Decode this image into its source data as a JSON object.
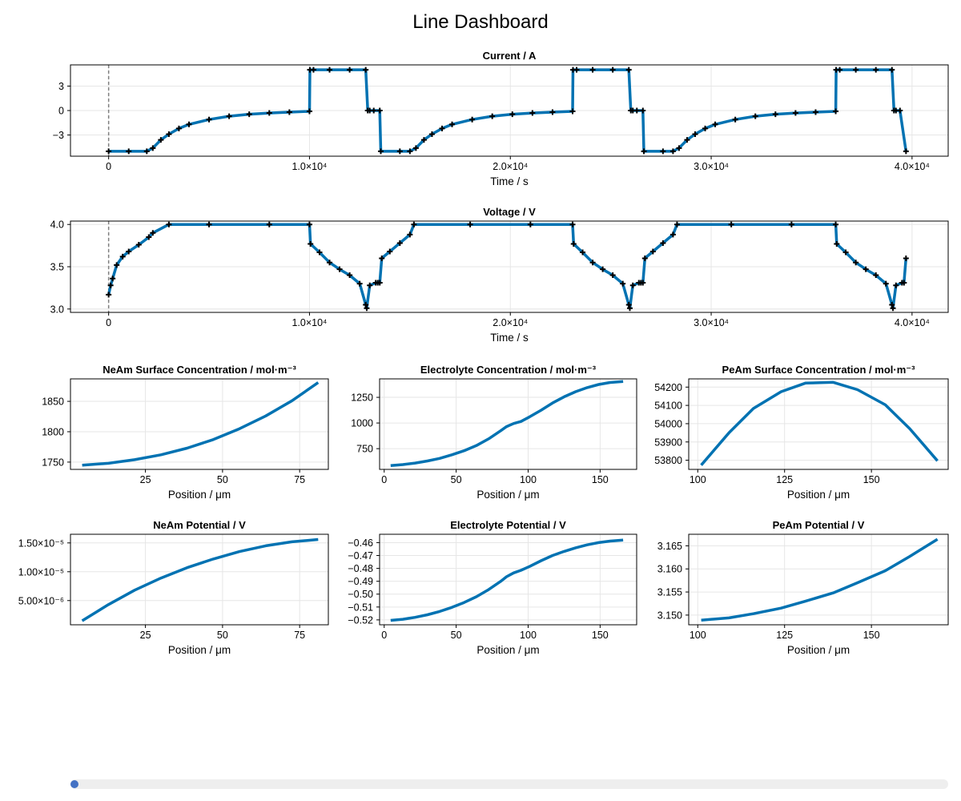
{
  "title": "Line Dashboard",
  "slider": {
    "value_fraction": 0.0
  },
  "colors": {
    "line": "#0072b2",
    "marker": "#000000",
    "grid": "#e6e6e6",
    "frame": "#000000",
    "slider_track": "#eeeeee",
    "slider_handle": "#4472c4",
    "vline": "#808080"
  },
  "chart_data": [
    {
      "type": "line",
      "title": "Current  /  A",
      "xlabel": "Time  /  s",
      "ylabel": "",
      "xlim": [
        -1900,
        41800
      ],
      "ylim": [
        -5.6,
        5.6
      ],
      "x_ticks": [
        0,
        10000,
        20000,
        30000,
        40000
      ],
      "x_tick_labels": [
        "0",
        "1.0×10⁴",
        "2.0×10⁴",
        "3.0×10⁴",
        "4.0×10⁴"
      ],
      "y_ticks": [
        -3,
        0,
        3
      ],
      "y_tick_labels": [
        "−3",
        "0",
        "3"
      ],
      "grid": true,
      "markers": "+",
      "vline_x": 0,
      "series": [
        {
          "x": [
            0,
            1000,
            1900,
            2200,
            2600,
            3000,
            3500,
            4000,
            5000,
            6000,
            7000,
            8000,
            9000,
            10000,
            10020,
            10200,
            11000,
            12000,
            12800,
            12900,
            13000,
            13200,
            13500,
            13550,
            14500,
            15000,
            15300,
            15700,
            16100,
            16600,
            17100,
            18100,
            19100,
            20100,
            21100,
            22100,
            23100,
            23120,
            23300,
            24100,
            25100,
            25900,
            26000,
            26100,
            26300,
            26600,
            26650,
            27600,
            28100,
            28400,
            28800,
            29200,
            29700,
            30200,
            31200,
            32200,
            33200,
            34200,
            35200,
            36200,
            36220,
            36400,
            37200,
            38200,
            39000,
            39100,
            39200,
            39400,
            39700
          ],
          "y": [
            -5,
            -5,
            -5,
            -4.6,
            -3.6,
            -2.9,
            -2.2,
            -1.7,
            -1.1,
            -0.7,
            -0.45,
            -0.3,
            -0.2,
            -0.1,
            5,
            5,
            5,
            5,
            5,
            0,
            0,
            0,
            0,
            -5,
            -5,
            -5,
            -4.6,
            -3.6,
            -2.9,
            -2.2,
            -1.7,
            -1.1,
            -0.7,
            -0.45,
            -0.3,
            -0.2,
            -0.1,
            5,
            5,
            5,
            5,
            5,
            0,
            0,
            0,
            0,
            -5,
            -5,
            -5,
            -4.6,
            -3.6,
            -2.9,
            -2.2,
            -1.7,
            -1.1,
            -0.7,
            -0.45,
            -0.3,
            -0.2,
            -0.1,
            5,
            5,
            5,
            5,
            5,
            0,
            0,
            0,
            -5
          ]
        }
      ]
    },
    {
      "type": "line",
      "title": "Voltage  /  V",
      "xlabel": "Time  /  s",
      "ylabel": "",
      "xlim": [
        -1900,
        41800
      ],
      "ylim": [
        2.96,
        4.04
      ],
      "x_ticks": [
        0,
        10000,
        20000,
        30000,
        40000
      ],
      "x_tick_labels": [
        "0",
        "1.0×10⁴",
        "2.0×10⁴",
        "3.0×10⁴",
        "4.0×10⁴"
      ],
      "y_ticks": [
        3.0,
        3.5,
        4.0
      ],
      "y_tick_labels": [
        "3.0",
        "3.5",
        "4.0"
      ],
      "grid": true,
      "markers": "+",
      "vline_x": 0,
      "series": [
        {
          "x": [
            0,
            100,
            200,
            400,
            700,
            1000,
            1500,
            2000,
            2200,
            3000,
            5000,
            8000,
            10000,
            10050,
            10500,
            11000,
            11500,
            12000,
            12500,
            12800,
            12850,
            13000,
            13300,
            13400,
            13500,
            13600,
            14000,
            14500,
            15000,
            15200,
            18000,
            21000,
            23100,
            23150,
            23600,
            24100,
            24600,
            25100,
            25600,
            25900,
            25950,
            26100,
            26400,
            26500,
            26600,
            26700,
            27100,
            27600,
            28100,
            28300,
            31000,
            34000,
            36200,
            36250,
            36700,
            37200,
            37700,
            38200,
            38700,
            39000,
            39050,
            39200,
            39500,
            39600,
            39700
          ],
          "y": [
            3.17,
            3.28,
            3.36,
            3.52,
            3.62,
            3.68,
            3.76,
            3.85,
            3.9,
            4.0,
            4.0,
            4.0,
            4.0,
            3.77,
            3.67,
            3.55,
            3.47,
            3.4,
            3.3,
            3.05,
            3.01,
            3.28,
            3.31,
            3.31,
            3.31,
            3.6,
            3.68,
            3.78,
            3.88,
            4.0,
            4.0,
            4.0,
            4.0,
            3.77,
            3.67,
            3.55,
            3.47,
            3.4,
            3.3,
            3.05,
            3.01,
            3.28,
            3.31,
            3.31,
            3.31,
            3.6,
            3.68,
            3.78,
            3.88,
            4.0,
            4.0,
            4.0,
            4.0,
            3.77,
            3.67,
            3.55,
            3.47,
            3.4,
            3.3,
            3.05,
            3.01,
            3.28,
            3.31,
            3.31,
            3.6
          ]
        }
      ]
    },
    {
      "type": "line",
      "title": "NeAm Surface Concentration  /  mol·m⁻³",
      "xlabel": "Position  /  μm",
      "ylabel": "",
      "xlim": [
        0.7,
        84.3
      ],
      "ylim": [
        1738,
        1887
      ],
      "x_ticks": [
        25,
        50,
        75
      ],
      "x_tick_labels": [
        "25",
        "50",
        "75"
      ],
      "y_ticks": [
        1750,
        1800,
        1850
      ],
      "y_tick_labels": [
        "1750",
        "1800",
        "1850"
      ],
      "grid": true,
      "series": [
        {
          "x": [
            4.5,
            13,
            21.5,
            30,
            38.5,
            47,
            55.5,
            64,
            72.5,
            81
          ],
          "y": [
            1745,
            1748,
            1754,
            1762,
            1773,
            1787,
            1805,
            1826,
            1851,
            1881
          ]
        }
      ]
    },
    {
      "type": "line",
      "title": "Electrolyte Concentration  /  mol·m⁻³",
      "xlabel": "Position  /  μm",
      "ylabel": "",
      "xlim": [
        -3.2,
        175.4
      ],
      "ylim": [
        548,
        1430
      ],
      "x_ticks": [
        0,
        50,
        100,
        150
      ],
      "x_tick_labels": [
        "0",
        "50",
        "100",
        "150"
      ],
      "y_ticks": [
        750,
        1000,
        1250
      ],
      "y_tick_labels": [
        "750",
        "1000",
        "1250"
      ],
      "grid": true,
      "series": [
        {
          "x": [
            4.5,
            13,
            21.5,
            30,
            38.5,
            47,
            55.5,
            64,
            72.5,
            81,
            85,
            90,
            95,
            101,
            109,
            117,
            125,
            133,
            141,
            149,
            157,
            166
          ],
          "y": [
            585,
            595,
            610,
            630,
            655,
            690,
            730,
            780,
            845,
            925,
            965,
            995,
            1015,
            1060,
            1125,
            1195,
            1255,
            1305,
            1345,
            1375,
            1395,
            1405
          ]
        }
      ]
    },
    {
      "type": "line",
      "title": "PeAm Surface Concentration  /  mol·m⁻³",
      "xlabel": "Position  /  μm",
      "ylabel": "",
      "xlim": [
        97.4,
        172.1
      ],
      "ylim": [
        53750,
        54245
      ],
      "x_ticks": [
        100,
        125,
        150
      ],
      "x_tick_labels": [
        "100",
        "125",
        "150"
      ],
      "y_ticks": [
        53800,
        53900,
        54000,
        54100,
        54200
      ],
      "y_tick_labels": [
        "53800",
        "53900",
        "54000",
        "54100",
        "54200"
      ],
      "grid": true,
      "series": [
        {
          "x": [
            101,
            109,
            116,
            124,
            131,
            139,
            146,
            154,
            161,
            169
          ],
          "y": [
            53773,
            53950,
            54083,
            54175,
            54222,
            54226,
            54186,
            54103,
            53973,
            53797
          ]
        }
      ]
    },
    {
      "type": "line",
      "title": "NeAm Potential  /  V",
      "xlabel": "Position  /  μm",
      "ylabel": "",
      "xlim": [
        0.7,
        84.3
      ],
      "ylim": [
        8e-07,
        1.65e-05
      ],
      "x_ticks": [
        25,
        50,
        75
      ],
      "x_tick_labels": [
        "25",
        "50",
        "75"
      ],
      "y_ticks": [
        5e-06,
        1e-05,
        1.5e-05
      ],
      "y_tick_labels": [
        "5.00×10⁻⁶",
        "1.00×10⁻⁵",
        "1.50×10⁻⁵"
      ],
      "grid": true,
      "series": [
        {
          "x": [
            4.5,
            13,
            21.5,
            30,
            38.5,
            47,
            55.5,
            64,
            72.5,
            81
          ],
          "y": [
            1.5e-06,
            4.3e-06,
            6.8e-06,
            8.9e-06,
            1.07e-05,
            1.22e-05,
            1.35e-05,
            1.45e-05,
            1.52e-05,
            1.56e-05
          ]
        }
      ]
    },
    {
      "type": "line",
      "title": "Electrolyte Potential  /  V",
      "xlabel": "Position  /  μm",
      "ylabel": "",
      "xlim": [
        -3.2,
        175.4
      ],
      "ylim": [
        -0.5238,
        -0.4535
      ],
      "x_ticks": [
        0,
        50,
        100,
        150
      ],
      "x_tick_labels": [
        "0",
        "50",
        "100",
        "150"
      ],
      "y_ticks": [
        -0.52,
        -0.51,
        -0.5,
        -0.49,
        -0.48,
        -0.47,
        -0.46
      ],
      "y_tick_labels": [
        "−0.52",
        "−0.51",
        "−0.50",
        "−0.49",
        "−0.48",
        "−0.47",
        "−0.46"
      ],
      "grid": true,
      "series": [
        {
          "x": [
            4.5,
            13,
            21.5,
            30,
            38.5,
            47,
            55.5,
            64,
            72.5,
            81,
            85,
            90,
            95,
            101,
            109,
            117,
            125,
            133,
            141,
            149,
            157,
            166
          ],
          "y": [
            -0.5204,
            -0.5195,
            -0.518,
            -0.516,
            -0.5135,
            -0.5103,
            -0.5065,
            -0.502,
            -0.4965,
            -0.49,
            -0.4865,
            -0.4835,
            -0.4815,
            -0.4785,
            -0.474,
            -0.47,
            -0.4668,
            -0.464,
            -0.4617,
            -0.46,
            -0.4588,
            -0.458
          ]
        }
      ]
    },
    {
      "type": "line",
      "title": "PeAm Potential  /  V",
      "xlabel": "Position  /  μm",
      "ylabel": "",
      "xlim": [
        97.4,
        172.1
      ],
      "ylim": [
        3.1479,
        3.1675
      ],
      "x_ticks": [
        100,
        125,
        150
      ],
      "x_tick_labels": [
        "100",
        "125",
        "150"
      ],
      "y_ticks": [
        3.15,
        3.155,
        3.16,
        3.165
      ],
      "y_tick_labels": [
        "3.150",
        "3.155",
        "3.160",
        "3.165"
      ],
      "grid": true,
      "series": [
        {
          "x": [
            101,
            109,
            116,
            124,
            131,
            139,
            146,
            154,
            161,
            169
          ],
          "y": [
            3.1489,
            3.1494,
            3.1503,
            3.1515,
            3.153,
            3.1548,
            3.157,
            3.1596,
            3.1627,
            3.1664
          ]
        }
      ]
    }
  ]
}
